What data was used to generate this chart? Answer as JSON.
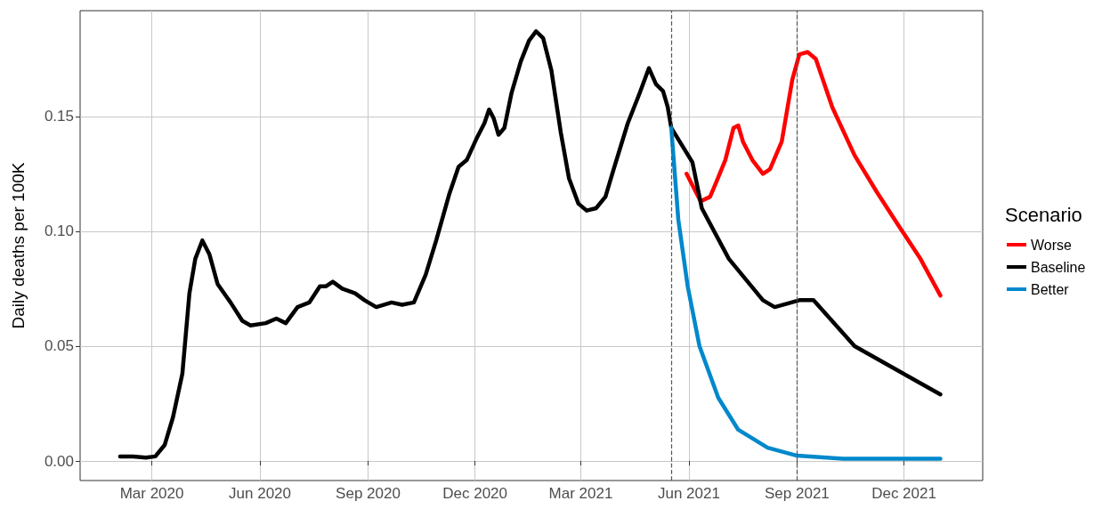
{
  "chart_data": {
    "type": "line",
    "ylabel": "Daily deaths per 100K",
    "legend_title": "Scenario",
    "legend": "right",
    "grid": true,
    "marker": "none",
    "line_style": "solid",
    "xlim": [
      "2019-12-31",
      "2022-02-06"
    ],
    "xticks": [
      {
        "value": "2020-03-01",
        "label": "Mar 2020"
      },
      {
        "value": "2020-06-01",
        "label": "Jun 2020"
      },
      {
        "value": "2020-09-01",
        "label": "Sep 2020"
      },
      {
        "value": "2020-12-01",
        "label": "Dec 2020"
      },
      {
        "value": "2021-03-01",
        "label": "Mar 2021"
      },
      {
        "value": "2021-06-01",
        "label": "Jun 2021"
      },
      {
        "value": "2021-09-01",
        "label": "Sep 2021"
      },
      {
        "value": "2021-12-01",
        "label": "Dec 2021"
      }
    ],
    "ylim": [
      -0.0085,
      0.196
    ],
    "yticks": [
      {
        "value": 0,
        "label": "0.00"
      },
      {
        "value": 0.05,
        "label": "0.05"
      },
      {
        "value": 0.1,
        "label": "0.10"
      },
      {
        "value": 0.15,
        "label": "0.15"
      }
    ],
    "ref_lines": [
      {
        "axis": "x",
        "value": "2021-05-17",
        "color": "#555555",
        "line_style": "dashed"
      },
      {
        "axis": "x",
        "value": "2021-09-01",
        "color": "#555555",
        "line_style": "dashed"
      }
    ],
    "series": [
      {
        "name": "Worse",
        "color": "#ff0000",
        "x": [
          "2021-05-30",
          "2021-06-11",
          "2021-06-19",
          "2021-06-24",
          "2021-07-02",
          "2021-07-09",
          "2021-07-13",
          "2021-07-17",
          "2021-07-25",
          "2021-08-03",
          "2021-08-09",
          "2021-08-19",
          "2021-08-28",
          "2021-09-03",
          "2021-09-10",
          "2021-09-17",
          "2021-10-01",
          "2021-10-20",
          "2021-11-08",
          "2021-11-27",
          "2021-12-15",
          "2022-01-01"
        ],
        "values": [
          0.125,
          0.113,
          0.115,
          0.121,
          0.131,
          0.145,
          0.146,
          0.139,
          0.131,
          0.125,
          0.127,
          0.139,
          0.166,
          0.177,
          0.178,
          0.175,
          0.154,
          0.133,
          0.117,
          0.102,
          0.088,
          0.072
        ]
      },
      {
        "name": "Baseline",
        "color": "#000000",
        "x": [
          "2020-02-03",
          "2020-02-14",
          "2020-02-25",
          "2020-03-04",
          "2020-03-12",
          "2020-03-19",
          "2020-03-27",
          "2020-04-02",
          "2020-04-07",
          "2020-04-13",
          "2020-04-19",
          "2020-04-26",
          "2020-05-07",
          "2020-05-17",
          "2020-05-24",
          "2020-06-06",
          "2020-06-15",
          "2020-06-23",
          "2020-07-03",
          "2020-07-13",
          "2020-07-22",
          "2020-07-27",
          "2020-08-02",
          "2020-08-10",
          "2020-08-21",
          "2020-08-29",
          "2020-09-08",
          "2020-09-21",
          "2020-09-30",
          "2020-10-10",
          "2020-10-20",
          "2020-10-29",
          "2020-11-09",
          "2020-11-17",
          "2020-11-24",
          "2020-12-02",
          "2020-12-09",
          "2020-12-13",
          "2020-12-17",
          "2020-12-21",
          "2020-12-26",
          "2021-01-01",
          "2021-01-09",
          "2021-01-16",
          "2021-01-22",
          "2021-01-28",
          "2021-02-04",
          "2021-02-12",
          "2021-02-19",
          "2021-02-27",
          "2021-03-06",
          "2021-03-14",
          "2021-03-22",
          "2021-03-29",
          "2021-04-10",
          "2021-04-20",
          "2021-04-28",
          "2021-05-04",
          "2021-05-10",
          "2021-05-14",
          "2021-05-17",
          "2021-06-04",
          "2021-06-12",
          "2021-07-05",
          "2021-08-03",
          "2021-08-13",
          "2021-09-03",
          "2021-09-15",
          "2021-10-20",
          "2021-12-04",
          "2022-01-01"
        ],
        "values": [
          0.002,
          0.002,
          0.0015,
          0.002,
          0.007,
          0.019,
          0.038,
          0.073,
          0.088,
          0.096,
          0.09,
          0.077,
          0.069,
          0.061,
          0.059,
          0.06,
          0.062,
          0.06,
          0.067,
          0.069,
          0.076,
          0.076,
          0.078,
          0.075,
          0.073,
          0.07,
          0.067,
          0.069,
          0.068,
          0.069,
          0.081,
          0.096,
          0.116,
          0.128,
          0.131,
          0.14,
          0.147,
          0.153,
          0.149,
          0.142,
          0.145,
          0.16,
          0.174,
          0.183,
          0.187,
          0.184,
          0.17,
          0.143,
          0.123,
          0.112,
          0.109,
          0.11,
          0.115,
          0.127,
          0.147,
          0.16,
          0.171,
          0.164,
          0.161,
          0.154,
          0.145,
          0.13,
          0.11,
          0.088,
          0.07,
          0.067,
          0.07,
          0.07,
          0.05,
          0.037,
          0.029
        ]
      },
      {
        "name": "Better",
        "color": "#0088cc",
        "x": [
          "2021-05-17",
          "2021-05-23",
          "2021-05-31",
          "2021-06-10",
          "2021-06-26",
          "2021-07-13",
          "2021-08-07",
          "2021-09-01",
          "2021-10-10",
          "2022-01-01"
        ],
        "values": [
          0.145,
          0.105,
          0.076,
          0.05,
          0.0275,
          0.0136,
          0.0058,
          0.0023,
          0.001,
          0.001
        ]
      }
    ]
  }
}
